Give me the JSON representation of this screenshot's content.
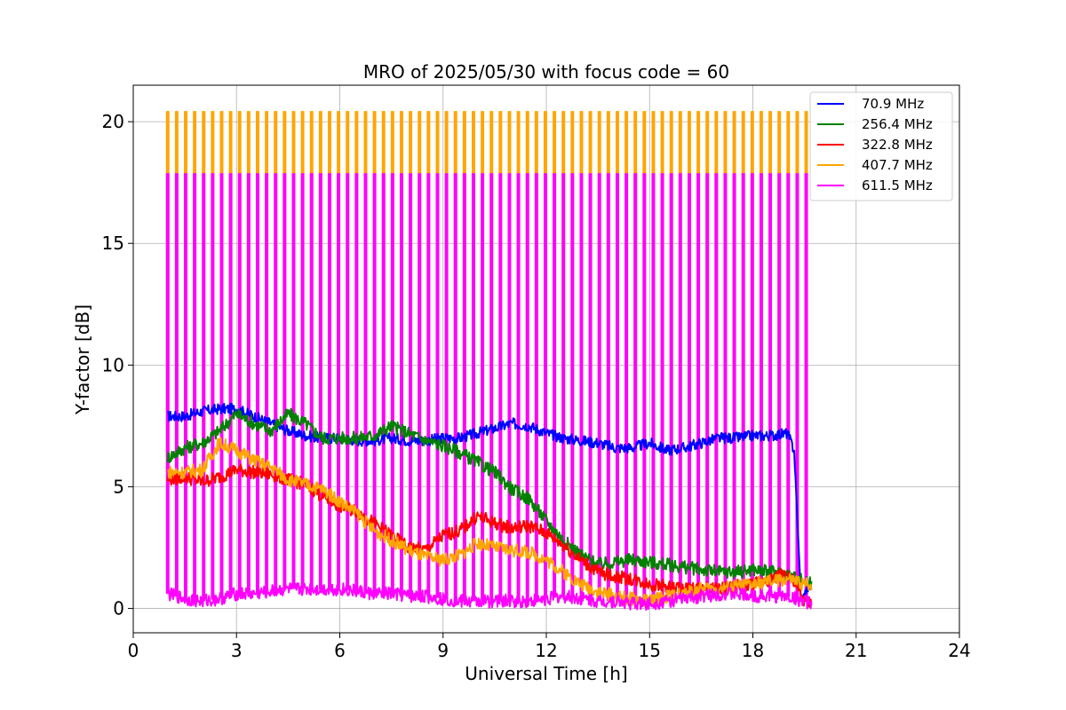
{
  "chart_data": {
    "type": "line",
    "title": "MRO of 2025/05/30 with focus code = 60",
    "xlabel": "Universal Time [h]",
    "ylabel": "Y-factor [dB]",
    "xlim": [
      0,
      24
    ],
    "ylim": [
      -1,
      21.5
    ],
    "xticks": [
      0,
      3,
      6,
      9,
      12,
      15,
      18,
      21,
      24
    ],
    "yticks": [
      0,
      5,
      10,
      15,
      20
    ],
    "grid": true,
    "legend_position": "top-right",
    "calibration_spikes": {
      "start_h": 1.0,
      "end_h": 19.55,
      "count": 72,
      "width_h": 0.05,
      "peak_407.7MHz_dB": 20.4,
      "peak_611.5MHz_dB": 17.85
    },
    "series": [
      {
        "name": "70.9 MHz",
        "label": " 70.9 MHz",
        "color": "#0000ff",
        "x": [
          1.0,
          1.5,
          2.0,
          2.5,
          3.0,
          3.5,
          4.0,
          4.5,
          5.0,
          5.5,
          6.0,
          6.5,
          7.0,
          7.5,
          8.0,
          8.5,
          9.0,
          9.5,
          10.0,
          10.5,
          11.0,
          11.5,
          12.0,
          12.5,
          13.0,
          13.5,
          14.0,
          14.5,
          15.0,
          15.5,
          16.0,
          16.5,
          17.0,
          17.5,
          18.0,
          18.5,
          19.0,
          19.2,
          19.4,
          19.7
        ],
        "y": [
          7.9,
          7.9,
          8.1,
          8.2,
          8.2,
          7.9,
          7.6,
          7.3,
          7.1,
          7.0,
          7.0,
          6.9,
          6.9,
          7.0,
          6.9,
          6.9,
          7.0,
          7.0,
          7.2,
          7.4,
          7.6,
          7.5,
          7.2,
          7.0,
          6.9,
          6.8,
          6.6,
          6.6,
          6.8,
          6.5,
          6.6,
          6.8,
          7.0,
          7.0,
          7.1,
          7.1,
          7.2,
          6.5,
          0.3,
          1.0
        ]
      },
      {
        "name": "256.4 MHz",
        "label": "256.4 MHz",
        "color": "#008000",
        "x": [
          1.0,
          1.5,
          2.0,
          2.5,
          3.0,
          3.5,
          4.0,
          4.5,
          5.0,
          5.5,
          6.0,
          6.5,
          7.0,
          7.5,
          8.0,
          8.5,
          9.0,
          9.5,
          10.0,
          10.5,
          11.0,
          11.5,
          12.0,
          12.5,
          13.0,
          13.5,
          14.0,
          14.5,
          15.0,
          15.5,
          16.0,
          16.5,
          17.0,
          17.5,
          18.0,
          18.5,
          19.0,
          19.5,
          19.7
        ],
        "y": [
          6.2,
          6.6,
          6.8,
          7.3,
          8.0,
          7.6,
          7.3,
          8.0,
          7.6,
          7.0,
          7.0,
          7.0,
          7.1,
          7.5,
          7.2,
          6.9,
          6.7,
          6.4,
          6.0,
          5.6,
          4.9,
          4.5,
          3.6,
          2.8,
          2.2,
          1.8,
          1.9,
          2.0,
          1.9,
          1.8,
          1.7,
          1.6,
          1.5,
          1.5,
          1.6,
          1.5,
          1.4,
          1.1,
          1.0
        ]
      },
      {
        "name": "322.8 MHz",
        "label": "322.8 MHz",
        "color": "#ff0000",
        "x": [
          1.0,
          1.5,
          2.0,
          2.5,
          3.0,
          3.5,
          4.0,
          4.5,
          5.0,
          5.5,
          6.0,
          6.5,
          7.0,
          7.5,
          8.0,
          8.5,
          9.0,
          9.5,
          10.0,
          10.5,
          11.0,
          11.5,
          12.0,
          12.5,
          13.0,
          13.5,
          14.0,
          14.5,
          15.0,
          15.5,
          16.0,
          16.5,
          17.0,
          17.5,
          18.0,
          18.5,
          19.0,
          19.5,
          19.7
        ],
        "y": [
          5.3,
          5.4,
          5.2,
          5.4,
          5.7,
          5.6,
          5.5,
          5.3,
          5.1,
          4.6,
          4.2,
          4.0,
          3.5,
          3.0,
          2.5,
          2.4,
          3.0,
          3.2,
          3.8,
          3.5,
          3.3,
          3.4,
          3.1,
          2.6,
          2.0,
          1.5,
          1.3,
          1.2,
          1.0,
          0.9,
          0.8,
          0.8,
          0.8,
          0.9,
          1.0,
          1.2,
          1.5,
          0.3,
          0.2
        ]
      },
      {
        "name": "407.7 MHz",
        "label": "407.7 MHz",
        "color": "#ffa500",
        "x": [
          1.0,
          1.5,
          2.0,
          2.5,
          3.0,
          3.5,
          4.0,
          4.5,
          5.0,
          5.5,
          6.0,
          6.5,
          7.0,
          7.5,
          8.0,
          8.5,
          9.0,
          9.5,
          10.0,
          10.5,
          11.0,
          11.5,
          12.0,
          12.5,
          13.0,
          13.5,
          14.0,
          14.5,
          15.0,
          15.5,
          16.0,
          16.5,
          17.0,
          17.5,
          18.0,
          18.5,
          19.0,
          19.5,
          19.7
        ],
        "y": [
          5.6,
          5.6,
          5.7,
          6.8,
          6.5,
          6.1,
          5.8,
          5.3,
          5.1,
          4.9,
          4.4,
          3.9,
          3.2,
          2.8,
          2.4,
          2.1,
          2.0,
          2.2,
          2.7,
          2.5,
          2.4,
          2.3,
          2.0,
          1.5,
          1.0,
          0.7,
          0.5,
          0.4,
          0.3,
          0.5,
          0.6,
          0.8,
          0.8,
          0.9,
          1.0,
          1.1,
          1.2,
          1.0,
          1.0
        ]
      },
      {
        "name": "611.5 MHz",
        "label": "611.5 MHz",
        "color": "#ff00ff",
        "x": [
          1.0,
          1.5,
          2.0,
          2.5,
          3.0,
          3.5,
          4.0,
          4.5,
          5.0,
          5.5,
          6.0,
          6.5,
          7.0,
          7.5,
          8.0,
          8.5,
          9.0,
          9.5,
          10.0,
          10.5,
          11.0,
          11.5,
          12.0,
          12.5,
          13.0,
          13.5,
          14.0,
          14.5,
          15.0,
          15.5,
          16.0,
          16.5,
          17.0,
          17.5,
          18.0,
          18.5,
          19.0,
          19.5,
          19.7
        ],
        "y": [
          0.6,
          0.4,
          0.3,
          0.4,
          0.6,
          0.6,
          0.7,
          0.8,
          0.8,
          0.8,
          0.8,
          0.7,
          0.6,
          0.6,
          0.5,
          0.5,
          0.4,
          0.3,
          0.3,
          0.3,
          0.3,
          0.3,
          0.4,
          0.5,
          0.4,
          0.3,
          0.3,
          0.2,
          0.2,
          0.3,
          0.4,
          0.5,
          0.6,
          0.6,
          0.5,
          0.5,
          0.5,
          0.3,
          0.2
        ]
      }
    ]
  }
}
